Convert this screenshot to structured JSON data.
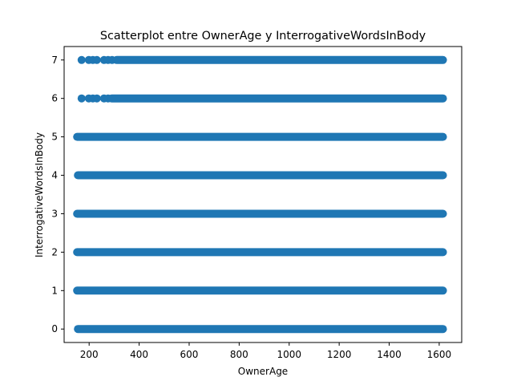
{
  "chart_data": {
    "type": "scatter",
    "title": "Scatterplot entre OwnerAge y InterrogativeWordsInBody",
    "xlabel": "OwnerAge",
    "ylabel": "InterrogativeWordsInBody",
    "xlim": [
      100,
      1690
    ],
    "ylim": [
      -0.35,
      7.35
    ],
    "xticks": [
      200,
      400,
      600,
      800,
      1000,
      1200,
      1400,
      1600
    ],
    "yticks": [
      0,
      1,
      2,
      3,
      4,
      5,
      6,
      7
    ],
    "grid": false,
    "legend": "none",
    "marker_color": "#1f77b4",
    "series": [
      {
        "points_summary": "dense bands: for each y level, x values span continuously across the range",
        "bands": [
          {
            "y": 0,
            "x_min": 155,
            "x_max": 1615
          },
          {
            "y": 1,
            "x_min": 152,
            "x_max": 1615
          },
          {
            "y": 2,
            "x_min": 152,
            "x_max": 1615
          },
          {
            "y": 3,
            "x_min": 152,
            "x_max": 1615
          },
          {
            "y": 4,
            "x_min": 155,
            "x_max": 1615
          },
          {
            "y": 5,
            "x_min": 152,
            "x_max": 1615
          },
          {
            "y": 6,
            "x_min": 170,
            "x_max": 1615,
            "sparse_until": 290
          },
          {
            "y": 7,
            "x_min": 170,
            "x_max": 1615,
            "sparse_until": 310
          }
        ]
      }
    ]
  }
}
